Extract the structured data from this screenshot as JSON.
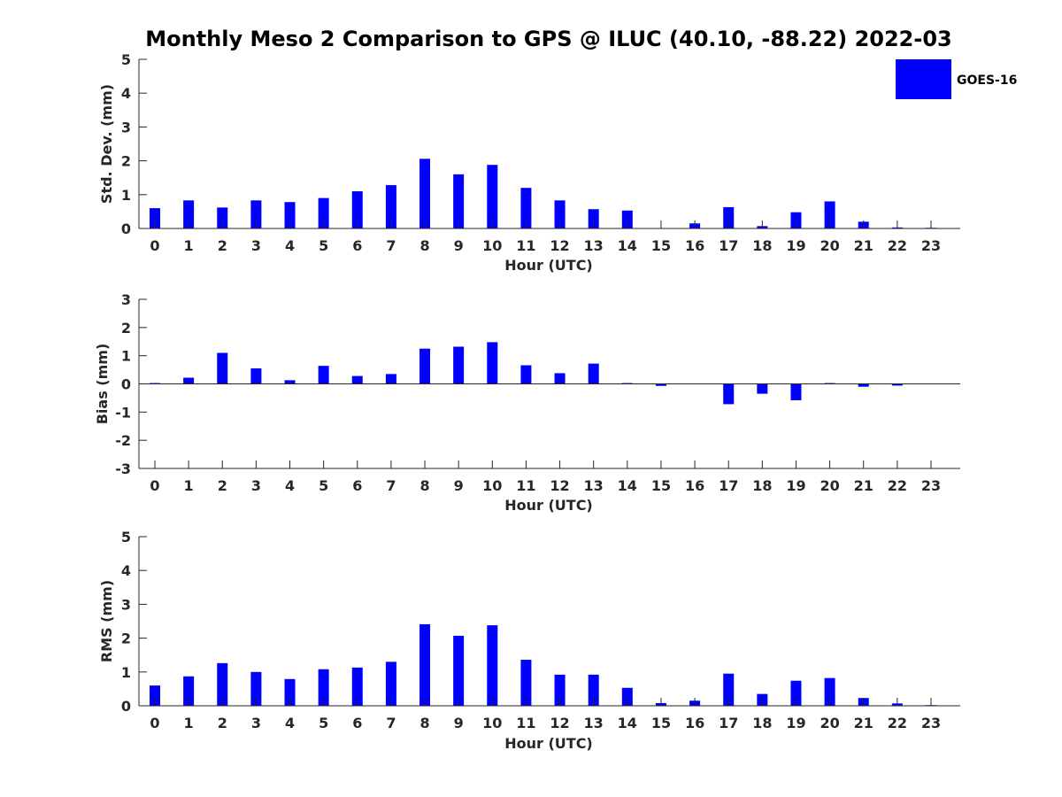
{
  "title": "Monthly Meso 2 Comparison to GPS @ ILUC (40.10, -88.22) 2022-03",
  "legend": {
    "label": "GOES-16",
    "placement": "top-right"
  },
  "colors": {
    "bar": "#0000ff",
    "axis": "#262626"
  },
  "chart_data": [
    {
      "type": "bar",
      "xlabel": "Hour (UTC)",
      "ylabel": "Std. Dev. (mm)",
      "ylim": [
        0,
        5
      ],
      "yticks": [
        0,
        1,
        2,
        3,
        4,
        5
      ],
      "categories": [
        "0",
        "1",
        "2",
        "3",
        "4",
        "5",
        "6",
        "7",
        "8",
        "9",
        "10",
        "11",
        "12",
        "13",
        "14",
        "15",
        "16",
        "17",
        "18",
        "19",
        "20",
        "21",
        "22",
        "23"
      ],
      "series": [
        {
          "name": "GOES-16",
          "values": [
            0.6,
            0.83,
            0.62,
            0.83,
            0.78,
            0.9,
            1.1,
            1.28,
            2.06,
            1.6,
            1.88,
            1.2,
            0.83,
            0.57,
            0.53,
            0.0,
            0.15,
            0.63,
            0.07,
            0.48,
            0.8,
            0.2,
            0.03,
            0.02
          ]
        }
      ]
    },
    {
      "type": "bar",
      "xlabel": "Hour (UTC)",
      "ylabel": "Bias (mm)",
      "ylim": [
        -3,
        3
      ],
      "yticks": [
        -3,
        -2,
        -1,
        0,
        1,
        2,
        3
      ],
      "categories": [
        "0",
        "1",
        "2",
        "3",
        "4",
        "5",
        "6",
        "7",
        "8",
        "9",
        "10",
        "11",
        "12",
        "13",
        "14",
        "15",
        "16",
        "17",
        "18",
        "19",
        "20",
        "21",
        "22",
        "23"
      ],
      "series": [
        {
          "name": "GOES-16",
          "values": [
            0.03,
            0.22,
            1.1,
            0.55,
            0.13,
            0.64,
            0.28,
            0.35,
            1.25,
            1.32,
            1.48,
            0.66,
            0.38,
            0.72,
            0.03,
            -0.07,
            0.0,
            -0.72,
            -0.35,
            -0.58,
            0.03,
            -0.1,
            -0.06,
            0.0
          ]
        }
      ]
    },
    {
      "type": "bar",
      "xlabel": "Hour (UTC)",
      "ylabel": "RMS (mm)",
      "ylim": [
        0,
        5
      ],
      "yticks": [
        0,
        1,
        2,
        3,
        4,
        5
      ],
      "categories": [
        "0",
        "1",
        "2",
        "3",
        "4",
        "5",
        "6",
        "7",
        "8",
        "9",
        "10",
        "11",
        "12",
        "13",
        "14",
        "15",
        "16",
        "17",
        "18",
        "19",
        "20",
        "21",
        "22",
        "23"
      ],
      "series": [
        {
          "name": "GOES-16",
          "values": [
            0.6,
            0.87,
            1.26,
            1.0,
            0.79,
            1.08,
            1.13,
            1.3,
            2.41,
            2.07,
            2.38,
            1.36,
            0.92,
            0.92,
            0.53,
            0.08,
            0.15,
            0.95,
            0.35,
            0.74,
            0.82,
            0.23,
            0.07,
            0.02
          ]
        }
      ]
    }
  ]
}
